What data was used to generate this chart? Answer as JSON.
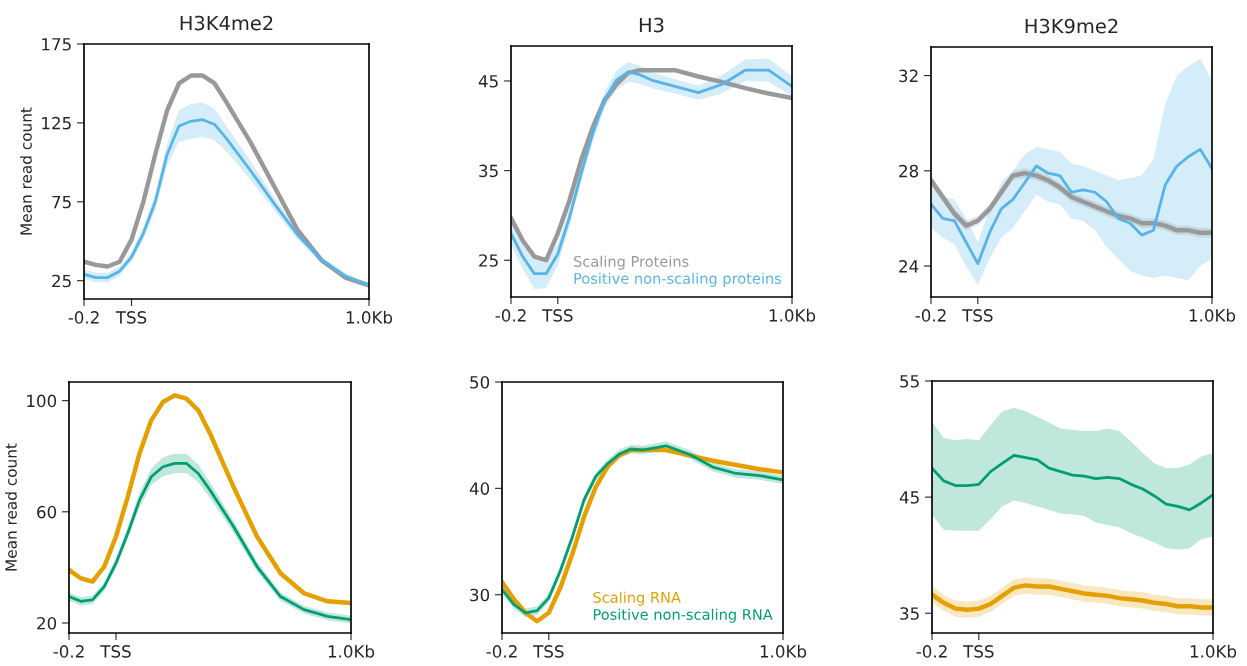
{
  "chart_data": [
    {
      "type": "line",
      "title": "H3K4me2",
      "ylabel": "Mean read count",
      "xlim": [
        -0.2,
        1.0
      ],
      "ylim": [
        13.4,
        175
      ],
      "xticks": [
        {
          "value": -0.2,
          "label": "-0.2"
        },
        {
          "value": 0,
          "label": "TSS"
        },
        {
          "value": 1.0,
          "label": "1.0Kb"
        }
      ],
      "yticks": [
        25,
        75,
        125,
        175
      ],
      "x": [
        -0.2,
        -0.15,
        -0.1,
        -0.05,
        0,
        0.05,
        0.1,
        0.15,
        0.2,
        0.25,
        0.3,
        0.35,
        0.4,
        0.5,
        0.6,
        0.7,
        0.8,
        0.9,
        1.0
      ],
      "series": [
        {
          "color": "#999999",
          "values": [
            37,
            35,
            34,
            37,
            51,
            75,
            105,
            133,
            150,
            155,
            155,
            150,
            138,
            113,
            85,
            57,
            38,
            27,
            22
          ]
        },
        {
          "color": "#56b4e9",
          "values": [
            29,
            27,
            27,
            31,
            40,
            55,
            75,
            105,
            123,
            126,
            127,
            124,
            115,
            95,
            74,
            54,
            38,
            28,
            22
          ],
          "lower": [
            26,
            24,
            24,
            28,
            37,
            51,
            70,
            98,
            113,
            115,
            116,
            114,
            107,
            89,
            70,
            51,
            36,
            26,
            21
          ],
          "upper": [
            32,
            30,
            30,
            34,
            43,
            59,
            80,
            112,
            133,
            137,
            138,
            134,
            123,
            101,
            78,
            57,
            40,
            30,
            23
          ]
        }
      ]
    },
    {
      "type": "line",
      "title": "H3",
      "xlim": [
        -0.2,
        1.0
      ],
      "ylim": [
        20.9,
        48.9
      ],
      "xticks": [
        {
          "value": -0.2,
          "label": "-0.2"
        },
        {
          "value": 0,
          "label": "TSS"
        },
        {
          "value": 1.0,
          "label": "1.0Kb"
        }
      ],
      "yticks": [
        25,
        35,
        45
      ],
      "legend": "bottom right",
      "x": [
        -0.2,
        -0.15,
        -0.1,
        -0.05,
        0,
        0.05,
        0.1,
        0.15,
        0.2,
        0.25,
        0.3,
        0.35,
        0.4,
        0.5,
        0.6,
        0.7,
        0.8,
        0.9,
        1.0
      ],
      "series": [
        {
          "name": "Scaling Proteins",
          "color": "#999999",
          "values": [
            29.7,
            27.2,
            25.4,
            25.0,
            28.0,
            31.7,
            36.2,
            39.9,
            42.9,
            44.6,
            45.9,
            46.2,
            46.2,
            46.2,
            45.5,
            44.9,
            44.2,
            43.6,
            43.1
          ]
        },
        {
          "name": "Positive non-scaling proteins",
          "color": "#56b4e9",
          "values": [
            28.0,
            25.4,
            23.5,
            23.5,
            25.7,
            29.8,
            34.7,
            39.2,
            42.9,
            45.1,
            46.0,
            45.7,
            45.1,
            44.4,
            43.7,
            44.6,
            46.2,
            46.2,
            44.4
          ],
          "lower": [
            26.8,
            24.0,
            21.8,
            21.9,
            24.5,
            28.8,
            33.8,
            38.3,
            42.0,
            44.0,
            44.9,
            44.7,
            44.2,
            43.6,
            42.9,
            43.6,
            45.0,
            44.9,
            43.3
          ],
          "upper": [
            29.2,
            26.8,
            25.2,
            25.1,
            26.9,
            30.8,
            35.6,
            40.1,
            43.8,
            46.2,
            47.1,
            46.7,
            46.0,
            45.2,
            44.5,
            45.6,
            47.4,
            47.5,
            45.5
          ]
        }
      ]
    },
    {
      "type": "line",
      "title": "H3K9me2",
      "xlim": [
        -0.2,
        1.0
      ],
      "ylim": [
        22.7,
        33.2
      ],
      "xticks": [
        {
          "value": -0.2,
          "label": "-0.2"
        },
        {
          "value": 0,
          "label": "TSS"
        },
        {
          "value": 1.0,
          "label": "1.0Kb"
        }
      ],
      "yticks": [
        24,
        28,
        32
      ],
      "x": [
        -0.2,
        -0.15,
        -0.1,
        -0.05,
        0,
        0.05,
        0.1,
        0.15,
        0.2,
        0.25,
        0.3,
        0.35,
        0.4,
        0.45,
        0.5,
        0.55,
        0.6,
        0.65,
        0.7,
        0.75,
        0.8,
        0.85,
        0.9,
        0.95,
        1.0
      ],
      "series": [
        {
          "color": "#999999",
          "values": [
            27.6,
            26.9,
            26.2,
            25.7,
            25.9,
            26.4,
            27.1,
            27.8,
            27.9,
            27.8,
            27.6,
            27.3,
            26.9,
            26.7,
            26.5,
            26.3,
            26.1,
            26.0,
            25.8,
            25.8,
            25.7,
            25.5,
            25.5,
            25.4,
            25.4
          ],
          "lower": [
            27.4,
            26.7,
            26.0,
            25.5,
            25.7,
            26.2,
            26.9,
            27.6,
            27.7,
            27.6,
            27.4,
            27.1,
            26.7,
            26.5,
            26.3,
            26.1,
            25.9,
            25.8,
            25.6,
            25.6,
            25.5,
            25.3,
            25.3,
            25.2,
            25.2
          ],
          "upper": [
            27.8,
            27.1,
            26.4,
            25.9,
            26.1,
            26.6,
            27.3,
            28.0,
            28.1,
            28.0,
            27.8,
            27.5,
            27.1,
            26.9,
            26.7,
            26.5,
            26.3,
            26.2,
            26.0,
            26.0,
            25.9,
            25.7,
            25.7,
            25.6,
            25.6
          ]
        },
        {
          "color": "#56b4e9",
          "values": [
            26.6,
            26.0,
            25.9,
            25.0,
            24.1,
            25.4,
            26.4,
            26.8,
            27.5,
            28.2,
            27.9,
            27.8,
            27.1,
            27.2,
            27.1,
            26.7,
            26.0,
            25.8,
            25.3,
            25.5,
            27.4,
            28.2,
            28.6,
            28.9,
            28.1
          ],
          "lower": [
            25.6,
            25.2,
            24.9,
            24.0,
            23.2,
            24.3,
            25.2,
            25.6,
            26.3,
            27.0,
            26.7,
            26.6,
            26.0,
            25.9,
            25.5,
            24.8,
            24.3,
            23.8,
            23.6,
            23.5,
            23.6,
            23.5,
            23.4,
            24.0,
            24.3
          ],
          "upper": [
            27.6,
            26.9,
            26.8,
            26.0,
            25.0,
            26.4,
            27.5,
            28.0,
            28.7,
            29.0,
            28.9,
            28.8,
            28.3,
            28.2,
            28.0,
            27.8,
            27.6,
            27.7,
            27.8,
            28.5,
            30.8,
            32.0,
            32.4,
            32.7,
            31.8
          ]
        }
      ]
    },
    {
      "type": "line",
      "ylabel": "Mean read count",
      "xlim": [
        -0.2,
        1.0
      ],
      "ylim": [
        16.4,
        106.7
      ],
      "xticks": [
        {
          "value": -0.2,
          "label": "-0.2"
        },
        {
          "value": 0,
          "label": "TSS"
        },
        {
          "value": 1.0,
          "label": "1.0Kb"
        }
      ],
      "yticks": [
        20,
        60,
        100
      ],
      "x": [
        -0.2,
        -0.15,
        -0.1,
        -0.05,
        0,
        0.05,
        0.1,
        0.15,
        0.2,
        0.25,
        0.3,
        0.35,
        0.4,
        0.5,
        0.6,
        0.7,
        0.8,
        0.9,
        1.0
      ],
      "series": [
        {
          "color": "#e69f00",
          "values": [
            39.1,
            36.1,
            34.9,
            40.3,
            51.1,
            65.4,
            81.0,
            92.9,
            99.5,
            101.9,
            100.7,
            96.5,
            88.2,
            69.0,
            51.1,
            37.9,
            30.7,
            27.8,
            27.2
          ]
        },
        {
          "color": "#009e73",
          "values": [
            29.5,
            27.8,
            28.3,
            33.1,
            41.5,
            52.3,
            64.2,
            72.6,
            76.2,
            77.4,
            77.4,
            73.8,
            67.8,
            54.7,
            40.3,
            29.5,
            24.8,
            22.4,
            21.2
          ],
          "lower": [
            28,
            26.3,
            26.8,
            31.6,
            39.8,
            50.3,
            61.5,
            69.6,
            72.8,
            73.9,
            74,
            70.6,
            65,
            52.6,
            38.5,
            28,
            23.4,
            21,
            19.8
          ],
          "upper": [
            31,
            29.3,
            29.8,
            34.6,
            43.2,
            54.3,
            66.9,
            75.6,
            79.6,
            80.9,
            80.8,
            77,
            70.6,
            56.8,
            42.1,
            31,
            26.2,
            23.8,
            22.6
          ]
        }
      ]
    },
    {
      "type": "line",
      "xlim": [
        -0.2,
        1.0
      ],
      "ylim": [
        26.4,
        50
      ],
      "xticks": [
        {
          "value": -0.2,
          "label": "-0.2"
        },
        {
          "value": 0,
          "label": "TSS"
        },
        {
          "value": 1.0,
          "label": "1.0Kb"
        }
      ],
      "yticks": [
        30,
        40,
        50
      ],
      "legend": "bottom right",
      "x": [
        -0.2,
        -0.15,
        -0.1,
        -0.05,
        0,
        0.05,
        0.1,
        0.15,
        0.2,
        0.25,
        0.3,
        0.35,
        0.4,
        0.5,
        0.6,
        0.7,
        0.8,
        0.9,
        1.0
      ],
      "series": [
        {
          "name": "Scaling RNA",
          "color": "#e69f00",
          "values": [
            31.2,
            29.6,
            28.3,
            27.5,
            28.3,
            30.7,
            33.8,
            37.3,
            40.1,
            42.0,
            43.1,
            43.6,
            43.6,
            43.6,
            43.1,
            42.6,
            42.2,
            41.8,
            41.5
          ]
        },
        {
          "name": "Positive non-scaling RNA",
          "color": "#009e73",
          "values": [
            30.5,
            29.1,
            28.3,
            28.5,
            29.7,
            32.3,
            35.4,
            38.9,
            41.1,
            42.3,
            43.2,
            43.7,
            43.6,
            44.0,
            43.2,
            42.0,
            41.4,
            41.2,
            40.8
          ],
          "lower": [
            30.1,
            28.7,
            27.9,
            28.1,
            29.3,
            31.9,
            35.0,
            38.5,
            40.7,
            41.9,
            42.8,
            43.3,
            43.2,
            43.6,
            42.8,
            41.6,
            41.0,
            40.8,
            40.4
          ],
          "upper": [
            30.9,
            29.5,
            28.7,
            28.9,
            30.1,
            32.7,
            35.8,
            39.3,
            41.5,
            42.7,
            43.6,
            44.1,
            44.0,
            44.4,
            43.6,
            42.4,
            41.8,
            41.6,
            41.2
          ]
        }
      ]
    },
    {
      "type": "line",
      "xlim": [
        -0.2,
        1.0
      ],
      "ylim": [
        33.3,
        55
      ],
      "xticks": [
        {
          "value": -0.2,
          "label": "-0.2"
        },
        {
          "value": 0,
          "label": "TSS"
        },
        {
          "value": 1.0,
          "label": "1.0Kb"
        }
      ],
      "yticks": [
        35,
        45,
        55
      ],
      "x": [
        -0.2,
        -0.15,
        -0.1,
        -0.05,
        0,
        0.05,
        0.1,
        0.15,
        0.2,
        0.25,
        0.3,
        0.35,
        0.4,
        0.45,
        0.5,
        0.55,
        0.6,
        0.65,
        0.7,
        0.75,
        0.8,
        0.85,
        0.9,
        0.95,
        1.0
      ],
      "series": [
        {
          "color": "#e69f00",
          "values": [
            36.6,
            35.9,
            35.4,
            35.3,
            35.4,
            35.8,
            36.5,
            37.2,
            37.4,
            37.3,
            37.3,
            37.1,
            36.9,
            36.7,
            36.6,
            36.5,
            36.3,
            36.2,
            36.1,
            35.9,
            35.8,
            35.6,
            35.6,
            35.5,
            35.5
          ],
          "lower": [
            35.9,
            35.2,
            34.7,
            34.6,
            34.7,
            35.1,
            35.8,
            36.5,
            36.7,
            36.6,
            36.6,
            36.4,
            36.2,
            36.0,
            35.9,
            35.8,
            35.6,
            35.5,
            35.4,
            35.2,
            35.1,
            34.9,
            34.9,
            34.8,
            34.8
          ],
          "upper": [
            37.3,
            36.6,
            36.1,
            36.0,
            36.1,
            36.5,
            37.2,
            37.9,
            38.1,
            38.0,
            38.0,
            37.8,
            37.6,
            37.4,
            37.3,
            37.2,
            37.0,
            36.9,
            36.8,
            36.6,
            36.5,
            36.3,
            36.3,
            36.2,
            36.2
          ]
        },
        {
          "color": "#009e73",
          "values": [
            47.5,
            46.4,
            46.0,
            46.0,
            46.1,
            47.2,
            47.9,
            48.6,
            48.4,
            48.2,
            47.5,
            47.2,
            46.9,
            46.8,
            46.6,
            46.7,
            46.6,
            46.1,
            45.7,
            45.1,
            44.4,
            44.2,
            43.9,
            44.5,
            45.2
          ],
          "lower": [
            43.5,
            42.2,
            42.1,
            42.1,
            42.1,
            43.1,
            44.2,
            44.7,
            44.5,
            44.2,
            43.9,
            43.6,
            43.5,
            43.4,
            42.8,
            42.6,
            42.4,
            41.9,
            41.5,
            41.1,
            40.6,
            40.5,
            40.6,
            41.4,
            41.6
          ],
          "upper": [
            51.5,
            50.1,
            49.9,
            50.0,
            49.9,
            51.2,
            52.4,
            52.7,
            52.4,
            51.9,
            51.4,
            50.9,
            50.8,
            50.7,
            50.7,
            50.9,
            50.7,
            49.8,
            48.8,
            47.9,
            47.5,
            47.5,
            47.8,
            48.5,
            48.8
          ]
        }
      ]
    }
  ]
}
